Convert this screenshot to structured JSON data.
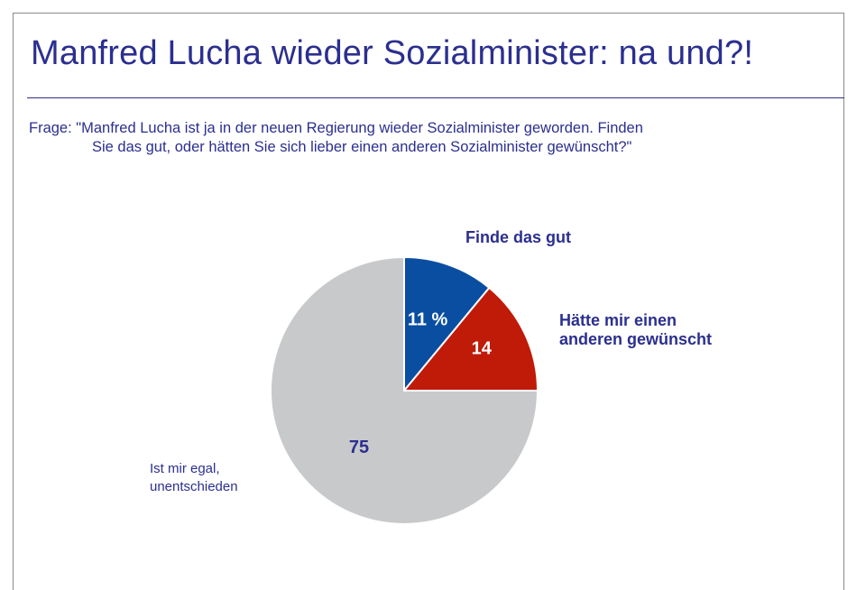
{
  "title": "Manfred Lucha wieder Sozialminister: na und?!",
  "question": {
    "line1": "Frage: \"Manfred Lucha ist ja in der neuen Regierung wieder Sozialminister geworden. Finden",
    "line2": "Sie das gut, oder hätten Sie sich lieber einen anderen Sozialminister gewünscht?\""
  },
  "labels": {
    "finde": "Finde das gut",
    "haette_line1": "Hätte mir einen",
    "haette_line2": "anderen gewünscht",
    "egal_line1": "Ist mir egal,",
    "egal_line2": "unentschieden"
  },
  "chart_data": {
    "type": "pie",
    "title": "Manfred Lucha wieder Sozialminister: na und?!",
    "slices": [
      {
        "name": "Finde das gut",
        "value": 11,
        "label": "11 %",
        "color": "#0a4ea2",
        "label_color": "#ffffff"
      },
      {
        "name": "Hätte mir einen anderen gewünscht",
        "value": 14,
        "label": "14",
        "color": "#c01a08",
        "label_color": "#ffffff"
      },
      {
        "name": "Ist mir egal, unentschieden",
        "value": 75,
        "label": "75",
        "color": "#c8c9cb",
        "label_color": "#2b2f8f"
      }
    ],
    "start_angle": "12 o'clock",
    "direction": "clockwise"
  }
}
